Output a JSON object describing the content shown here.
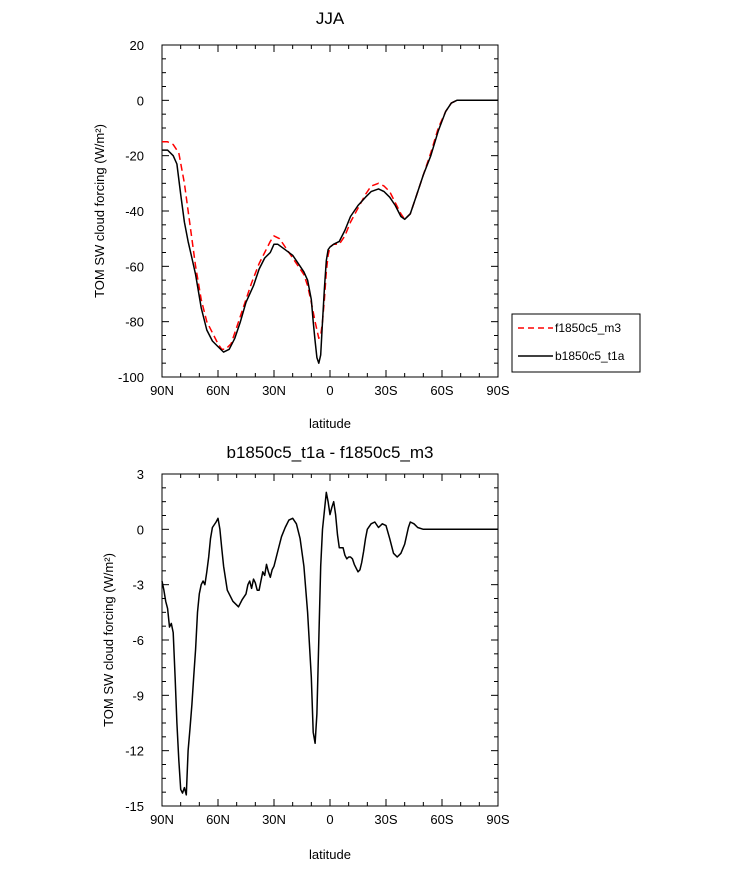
{
  "chart_data": [
    {
      "type": "line",
      "title": "JJA",
      "xlabel": "latitude",
      "ylabel": "TOM SW cloud forcing (W/m²)",
      "xlim": [
        90,
        -90
      ],
      "ylim": [
        -100,
        20
      ],
      "x_ticks": [
        {
          "value": 90,
          "label": "90N"
        },
        {
          "value": 60,
          "label": "60N"
        },
        {
          "value": 30,
          "label": "30N"
        },
        {
          "value": 0,
          "label": "0"
        },
        {
          "value": -30,
          "label": "30S"
        },
        {
          "value": -60,
          "label": "60S"
        },
        {
          "value": -90,
          "label": "90S"
        }
      ],
      "y_ticks": [
        {
          "value": 20,
          "label": "20"
        },
        {
          "value": 0,
          "label": "0"
        },
        {
          "value": -20,
          "label": "-20"
        },
        {
          "value": -40,
          "label": "-40"
        },
        {
          "value": -60,
          "label": "-60"
        },
        {
          "value": -80,
          "label": "-80"
        },
        {
          "value": -100,
          "label": "-100"
        }
      ],
      "legend": {
        "position": "right"
      },
      "series": [
        {
          "name": "f1850c5_m3",
          "color": "#ff0000",
          "dash": true,
          "points": [
            [
              90,
              -15
            ],
            [
              87,
              -15
            ],
            [
              84,
              -16
            ],
            [
              81,
              -19
            ],
            [
              78,
              -30
            ],
            [
              75,
              -45
            ],
            [
              72,
              -60
            ],
            [
              69,
              -72
            ],
            [
              66,
              -80
            ],
            [
              63,
              -84
            ],
            [
              60,
              -88
            ],
            [
              58,
              -90
            ],
            [
              56,
              -90
            ],
            [
              53,
              -88
            ],
            [
              50,
              -82
            ],
            [
              46,
              -74
            ],
            [
              42,
              -66
            ],
            [
              38,
              -59
            ],
            [
              35,
              -55
            ],
            [
              32,
              -51
            ],
            [
              30,
              -49
            ],
            [
              27,
              -50
            ],
            [
              24,
              -53
            ],
            [
              20,
              -57
            ],
            [
              17,
              -60
            ],
            [
              14,
              -63
            ],
            [
              12,
              -67
            ],
            [
              10,
              -73
            ],
            [
              8,
              -80
            ],
            [
              6,
              -86
            ],
            [
              5,
              -85
            ],
            [
              4,
              -80
            ],
            [
              3,
              -72
            ],
            [
              2,
              -62
            ],
            [
              1,
              -56
            ],
            [
              0,
              -53
            ],
            [
              -2,
              -52
            ],
            [
              -5,
              -52
            ],
            [
              -8,
              -49
            ],
            [
              -11,
              -44
            ],
            [
              -15,
              -39
            ],
            [
              -19,
              -34
            ],
            [
              -22,
              -31
            ],
            [
              -26,
              -30
            ],
            [
              -29,
              -31
            ],
            [
              -32,
              -33
            ],
            [
              -35,
              -37
            ],
            [
              -38,
              -41
            ],
            [
              -40,
              -43
            ],
            [
              -43,
              -41
            ],
            [
              -46,
              -35
            ],
            [
              -50,
              -27
            ],
            [
              -54,
              -19
            ],
            [
              -58,
              -10
            ],
            [
              -62,
              -4
            ],
            [
              -65,
              -1
            ],
            [
              -68,
              0
            ],
            [
              -75,
              0
            ],
            [
              -90,
              0
            ]
          ]
        },
        {
          "name": "b1850c5_t1a",
          "color": "#000000",
          "dash": false,
          "points": [
            [
              90,
              -18
            ],
            [
              87,
              -18
            ],
            [
              84,
              -20
            ],
            [
              82,
              -23
            ],
            [
              80,
              -34
            ],
            [
              78,
              -44
            ],
            [
              76,
              -51
            ],
            [
              74,
              -57
            ],
            [
              72,
              -63
            ],
            [
              69,
              -75
            ],
            [
              66,
              -83
            ],
            [
              63,
              -87
            ],
            [
              60,
              -89
            ],
            [
              57,
              -91
            ],
            [
              54,
              -90
            ],
            [
              51,
              -86
            ],
            [
              48,
              -80
            ],
            [
              45,
              -73
            ],
            [
              41,
              -67
            ],
            [
              38,
              -61
            ],
            [
              35,
              -57
            ],
            [
              32,
              -55
            ],
            [
              30,
              -52
            ],
            [
              28,
              -52
            ],
            [
              24,
              -54
            ],
            [
              20,
              -56
            ],
            [
              17,
              -59
            ],
            [
              14,
              -62
            ],
            [
              12,
              -65
            ],
            [
              10,
              -72
            ],
            [
              9,
              -80
            ],
            [
              8,
              -87
            ],
            [
              7,
              -93
            ],
            [
              6,
              -95
            ],
            [
              5,
              -92
            ],
            [
              4,
              -80
            ],
            [
              3,
              -68
            ],
            [
              2,
              -58
            ],
            [
              1,
              -54
            ],
            [
              0,
              -53
            ],
            [
              -2,
              -52
            ],
            [
              -5,
              -51
            ],
            [
              -8,
              -47
            ],
            [
              -11,
              -42
            ],
            [
              -15,
              -38
            ],
            [
              -19,
              -35
            ],
            [
              -22,
              -33
            ],
            [
              -26,
              -32
            ],
            [
              -29,
              -33
            ],
            [
              -32,
              -35
            ],
            [
              -35,
              -38
            ],
            [
              -38,
              -42
            ],
            [
              -40,
              -43
            ],
            [
              -43,
              -41
            ],
            [
              -46,
              -35
            ],
            [
              -50,
              -27
            ],
            [
              -54,
              -20
            ],
            [
              -58,
              -11
            ],
            [
              -62,
              -4
            ],
            [
              -65,
              -1
            ],
            [
              -68,
              0
            ],
            [
              -75,
              0
            ],
            [
              -90,
              0
            ]
          ]
        }
      ]
    },
    {
      "type": "line",
      "title": "b1850c5_t1a - f1850c5_m3",
      "xlabel": "latitude",
      "ylabel": "TOM SW cloud forcing (W/m²)",
      "xlim": [
        90,
        -90
      ],
      "ylim": [
        -15,
        3
      ],
      "x_ticks": [
        {
          "value": 90,
          "label": "90N"
        },
        {
          "value": 60,
          "label": "60N"
        },
        {
          "value": 30,
          "label": "30N"
        },
        {
          "value": 0,
          "label": "0"
        },
        {
          "value": -30,
          "label": "30S"
        },
        {
          "value": -60,
          "label": "60S"
        },
        {
          "value": -90,
          "label": "90S"
        }
      ],
      "y_ticks": [
        {
          "value": 3,
          "label": "3"
        },
        {
          "value": 0,
          "label": "0"
        },
        {
          "value": -3,
          "label": "-3"
        },
        {
          "value": -6,
          "label": "-6"
        },
        {
          "value": -9,
          "label": "-9"
        },
        {
          "value": -12,
          "label": "-12"
        },
        {
          "value": -15,
          "label": "-15"
        }
      ],
      "series": [
        {
          "color": "#000000",
          "dash": false,
          "points": [
            [
              90,
              -2.8
            ],
            [
              89,
              -3.3
            ],
            [
              88,
              -3.9
            ],
            [
              87,
              -4.3
            ],
            [
              86,
              -5.3
            ],
            [
              85,
              -5.1
            ],
            [
              84,
              -5.6
            ],
            [
              83,
              -8.0
            ],
            [
              82,
              -10.5
            ],
            [
              81,
              -12.5
            ],
            [
              80,
              -14.1
            ],
            [
              79,
              -14.3
            ],
            [
              78,
              -14.0
            ],
            [
              77,
              -14.4
            ],
            [
              76,
              -12.0
            ],
            [
              75,
              -10.8
            ],
            [
              74,
              -9.5
            ],
            [
              73,
              -8.0
            ],
            [
              72,
              -6.5
            ],
            [
              71,
              -4.5
            ],
            [
              70,
              -3.5
            ],
            [
              69,
              -3.0
            ],
            [
              68,
              -2.8
            ],
            [
              67,
              -3.0
            ],
            [
              66,
              -2.3
            ],
            [
              65,
              -1.5
            ],
            [
              64,
              -0.5
            ],
            [
              63,
              0.1
            ],
            [
              61,
              0.4
            ],
            [
              60,
              0.6
            ],
            [
              59,
              0.0
            ],
            [
              58,
              -1.0
            ],
            [
              57,
              -2.0
            ],
            [
              55,
              -3.3
            ],
            [
              52,
              -3.9
            ],
            [
              49,
              -4.2
            ],
            [
              47,
              -3.8
            ],
            [
              45,
              -3.5
            ],
            [
              44,
              -3.0
            ],
            [
              43,
              -2.8
            ],
            [
              42,
              -3.2
            ],
            [
              41,
              -2.7
            ],
            [
              40,
              -2.9
            ],
            [
              39,
              -3.3
            ],
            [
              38,
              -3.3
            ],
            [
              37,
              -2.8
            ],
            [
              36,
              -2.3
            ],
            [
              35,
              -2.5
            ],
            [
              34,
              -1.9
            ],
            [
              33,
              -2.3
            ],
            [
              32,
              -2.6
            ],
            [
              31,
              -2.2
            ],
            [
              30,
              -2.0
            ],
            [
              28,
              -1.2
            ],
            [
              26,
              -0.4
            ],
            [
              24,
              0.1
            ],
            [
              22,
              0.5
            ],
            [
              20,
              0.6
            ],
            [
              18,
              0.3
            ],
            [
              16,
              -0.5
            ],
            [
              14,
              -2.0
            ],
            [
              12,
              -4.5
            ],
            [
              10,
              -8.0
            ],
            [
              9,
              -11.0
            ],
            [
              8,
              -11.6
            ],
            [
              7,
              -10.0
            ],
            [
              6,
              -6.0
            ],
            [
              5,
              -2.0
            ],
            [
              4,
              0.0
            ],
            [
              3,
              1.0
            ],
            [
              2,
              2.0
            ],
            [
              1,
              1.5
            ],
            [
              0,
              0.8
            ],
            [
              -1,
              1.2
            ],
            [
              -2,
              1.5
            ],
            [
              -3,
              0.8
            ],
            [
              -4,
              -0.3
            ],
            [
              -5,
              -1.0
            ],
            [
              -6,
              -1.0
            ],
            [
              -7,
              -1.0
            ],
            [
              -8,
              -1.4
            ],
            [
              -9,
              -1.6
            ],
            [
              -10,
              -1.5
            ],
            [
              -11,
              -1.5
            ],
            [
              -12,
              -1.6
            ],
            [
              -13,
              -1.9
            ],
            [
              -14,
              -2.1
            ],
            [
              -15,
              -2.3
            ],
            [
              -16,
              -2.2
            ],
            [
              -17,
              -1.8
            ],
            [
              -18,
              -1.2
            ],
            [
              -19,
              -0.5
            ],
            [
              -20,
              0.0
            ],
            [
              -22,
              0.3
            ],
            [
              -24,
              0.4
            ],
            [
              -26,
              0.1
            ],
            [
              -28,
              0.3
            ],
            [
              -30,
              0.2
            ],
            [
              -32,
              -0.5
            ],
            [
              -34,
              -1.3
            ],
            [
              -36,
              -1.5
            ],
            [
              -38,
              -1.3
            ],
            [
              -40,
              -0.8
            ],
            [
              -42,
              0.1
            ],
            [
              -43,
              0.4
            ],
            [
              -45,
              0.3
            ],
            [
              -47,
              0.1
            ],
            [
              -50,
              0.0
            ],
            [
              -55,
              0.0
            ],
            [
              -60,
              0.0
            ],
            [
              -75,
              0.0
            ],
            [
              -90,
              0.0
            ]
          ]
        }
      ]
    }
  ]
}
